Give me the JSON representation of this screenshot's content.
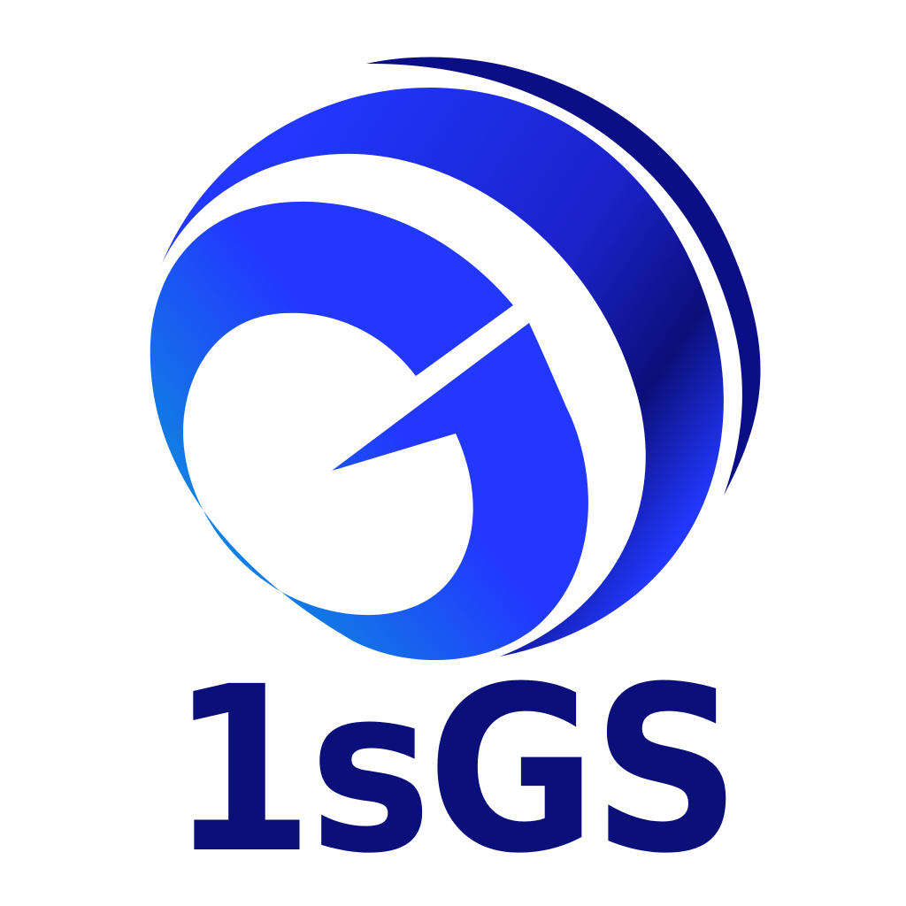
{
  "logo": {
    "wordmark": "1sGS",
    "icon": "stylized-g-globe-icon",
    "colors": {
      "background": "#ffffff",
      "wordmark": "#0b0f7a",
      "gradient_light": "#0a9ad8",
      "gradient_mid": "#2238ff",
      "gradient_dark": "#0b0f7a",
      "outer_arc": "#0a0f85"
    }
  }
}
